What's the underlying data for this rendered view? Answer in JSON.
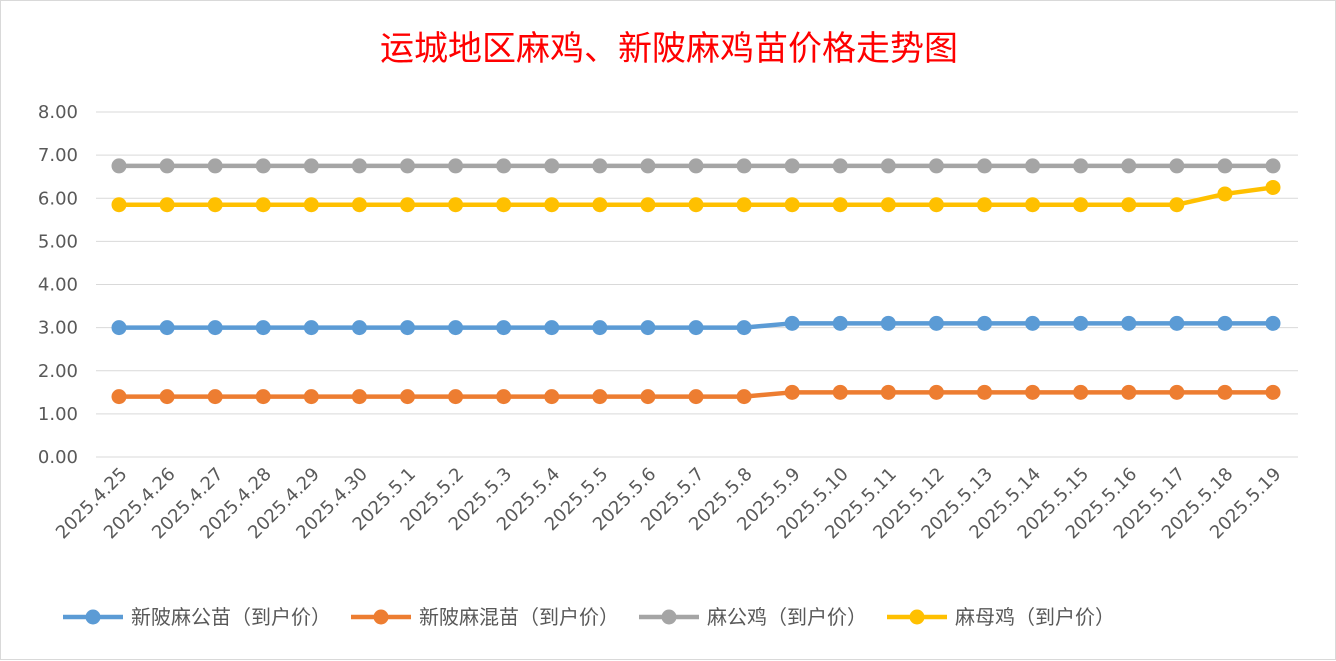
{
  "chart_data": {
    "type": "line",
    "title": "运城地区麻鸡、新陂麻鸡苗价格走势图",
    "xlabel": "",
    "ylabel": "",
    "ylim": [
      0,
      8
    ],
    "yticks": [
      "0.00",
      "1.00",
      "2.00",
      "3.00",
      "4.00",
      "5.00",
      "6.00",
      "7.00",
      "8.00"
    ],
    "grid": true,
    "legend_position": "bottom",
    "categories": [
      "2025.4.25",
      "2025.4.26",
      "2025.4.27",
      "2025.4.28",
      "2025.4.29",
      "2025.4.30",
      "2025.5.1",
      "2025.5.2",
      "2025.5.3",
      "2025.5.4",
      "2025.5.5",
      "2025.5.6",
      "2025.5.7",
      "2025.5.8",
      "2025.5.9",
      "2025.5.10",
      "2025.5.11",
      "2025.5.12",
      "2025.5.13",
      "2025.5.14",
      "2025.5.15",
      "2025.5.16",
      "2025.5.17",
      "2025.5.18",
      "2025.5.19"
    ],
    "series": [
      {
        "name": "新陂麻公苗（到户价）",
        "color": "#5b9bd5",
        "values": [
          3.0,
          3.0,
          3.0,
          3.0,
          3.0,
          3.0,
          3.0,
          3.0,
          3.0,
          3.0,
          3.0,
          3.0,
          3.0,
          3.0,
          3.1,
          3.1,
          3.1,
          3.1,
          3.1,
          3.1,
          3.1,
          3.1,
          3.1,
          3.1,
          3.1
        ]
      },
      {
        "name": "新陂麻混苗（到户价）",
        "color": "#ed7d31",
        "values": [
          1.4,
          1.4,
          1.4,
          1.4,
          1.4,
          1.4,
          1.4,
          1.4,
          1.4,
          1.4,
          1.4,
          1.4,
          1.4,
          1.4,
          1.5,
          1.5,
          1.5,
          1.5,
          1.5,
          1.5,
          1.5,
          1.5,
          1.5,
          1.5,
          1.5
        ]
      },
      {
        "name": "麻公鸡（到户价）",
        "color": "#a5a5a5",
        "values": [
          6.75,
          6.75,
          6.75,
          6.75,
          6.75,
          6.75,
          6.75,
          6.75,
          6.75,
          6.75,
          6.75,
          6.75,
          6.75,
          6.75,
          6.75,
          6.75,
          6.75,
          6.75,
          6.75,
          6.75,
          6.75,
          6.75,
          6.75,
          6.75,
          6.75
        ]
      },
      {
        "name": "麻母鸡（到户价）",
        "color": "#ffc000",
        "values": [
          5.85,
          5.85,
          5.85,
          5.85,
          5.85,
          5.85,
          5.85,
          5.85,
          5.85,
          5.85,
          5.85,
          5.85,
          5.85,
          5.85,
          5.85,
          5.85,
          5.85,
          5.85,
          5.85,
          5.85,
          5.85,
          5.85,
          5.85,
          6.1,
          6.25
        ]
      }
    ]
  }
}
